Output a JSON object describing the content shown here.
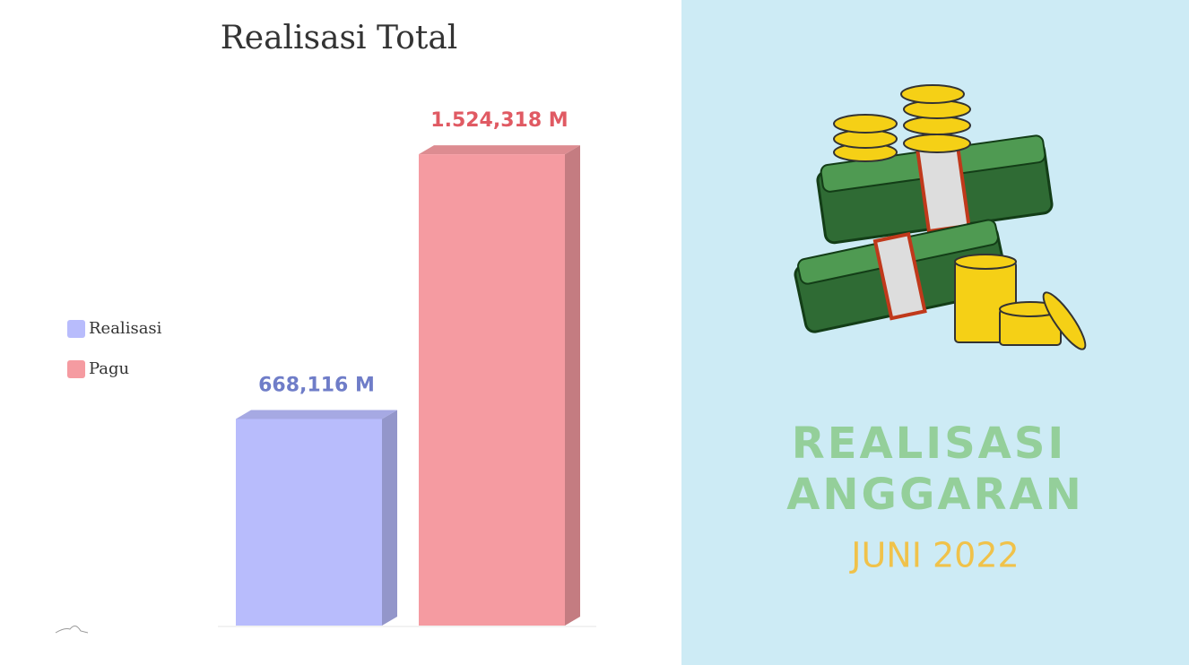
{
  "chart_data": {
    "type": "bar3d",
    "title": "Realisasi Total",
    "categories": [
      null
    ],
    "series": [
      {
        "name": "Realisasi",
        "color": "#b8bcfc",
        "label_color": "#6f7dc8",
        "values": [
          668.116
        ],
        "value_labels": [
          "668,116 M"
        ]
      },
      {
        "name": "Pagu",
        "color": "#f59ba1",
        "label_color": "#e05a63",
        "values": [
          1524.318
        ],
        "value_labels": [
          "1.524,318 M"
        ]
      }
    ],
    "legend": "left"
  },
  "panel": {
    "title_lines": [
      "REALISASI",
      "ANGGARAN"
    ],
    "subtitle": "JUNI 2022"
  }
}
